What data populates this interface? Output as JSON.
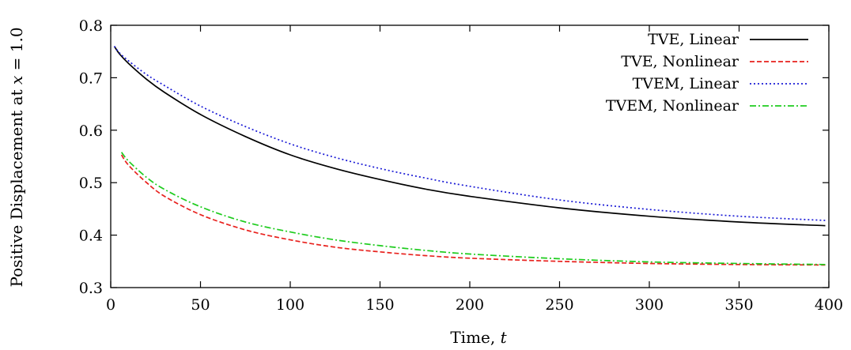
{
  "chart_data": {
    "type": "line",
    "title": "",
    "xlabel": "Time, t",
    "ylabel": "Positive Displacement at x = 1.0",
    "xlim": [
      0,
      400
    ],
    "ylim": [
      0.3,
      0.8
    ],
    "xticks": [
      0,
      50,
      100,
      150,
      200,
      250,
      300,
      350,
      400
    ],
    "yticks": [
      0.3,
      0.4,
      0.5,
      0.6,
      0.7,
      0.8
    ],
    "grid": false,
    "legend": "top-right",
    "series": [
      {
        "name": "TVE, Linear",
        "color": "#000000",
        "dash": "solid",
        "x": [
          2,
          5,
          10,
          20,
          30,
          50,
          75,
          100,
          125,
          150,
          175,
          200,
          250,
          300,
          350,
          398
        ],
        "y": [
          0.76,
          0.745,
          0.727,
          0.697,
          0.672,
          0.63,
          0.588,
          0.553,
          0.527,
          0.506,
          0.488,
          0.474,
          0.452,
          0.436,
          0.425,
          0.418
        ]
      },
      {
        "name": "TVE, Nonlinear",
        "color": "#e8211d",
        "dash": "dashed",
        "x": [
          6,
          10,
          20,
          30,
          50,
          75,
          100,
          125,
          150,
          175,
          200,
          250,
          300,
          350,
          398
        ],
        "y": [
          0.553,
          0.533,
          0.5,
          0.474,
          0.439,
          0.41,
          0.391,
          0.377,
          0.368,
          0.361,
          0.356,
          0.35,
          0.346,
          0.344,
          0.343
        ]
      },
      {
        "name": "TVEM, Linear",
        "color": "#1b1bd6",
        "dash": "dotted",
        "x": [
          2,
          5,
          10,
          20,
          30,
          50,
          75,
          100,
          125,
          150,
          175,
          200,
          250,
          300,
          350,
          398
        ],
        "y": [
          0.76,
          0.747,
          0.732,
          0.706,
          0.685,
          0.646,
          0.607,
          0.574,
          0.548,
          0.527,
          0.509,
          0.493,
          0.467,
          0.449,
          0.436,
          0.428
        ]
      },
      {
        "name": "TVEM, Nonlinear",
        "color": "#1ecc1e",
        "dash": "dashdot",
        "x": [
          6,
          10,
          20,
          30,
          50,
          75,
          100,
          125,
          150,
          175,
          200,
          250,
          300,
          350,
          398
        ],
        "y": [
          0.558,
          0.541,
          0.51,
          0.487,
          0.454,
          0.425,
          0.406,
          0.391,
          0.38,
          0.371,
          0.364,
          0.355,
          0.349,
          0.346,
          0.344
        ]
      }
    ]
  }
}
